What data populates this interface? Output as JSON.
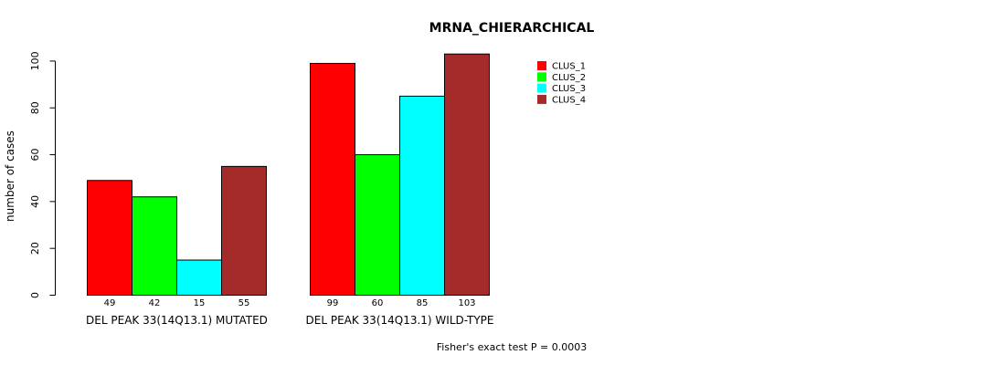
{
  "chart_data": {
    "type": "bar",
    "title": "MRNA_CHIERARCHICAL",
    "xlabel": "",
    "ylabel": "number of cases",
    "ylim": [
      0,
      103
    ],
    "y_ticks": [
      0,
      20,
      40,
      60,
      80,
      100
    ],
    "grid": false,
    "legend_position": "top-right",
    "categories": [
      "DEL PEAK 33(14Q13.1) MUTATED",
      "DEL PEAK 33(14Q13.1) WILD-TYPE"
    ],
    "series": [
      {
        "name": "CLUS_1",
        "color": "#ff0000",
        "values": [
          49,
          99
        ]
      },
      {
        "name": "CLUS_2",
        "color": "#00ff00",
        "values": [
          42,
          60
        ]
      },
      {
        "name": "CLUS_3",
        "color": "#00ffff",
        "values": [
          15,
          85
        ]
      },
      {
        "name": "CLUS_4",
        "color": "#a52a2a",
        "values": [
          55,
          103
        ]
      }
    ],
    "annotation": "Fisher's exact test P = 0.0003"
  }
}
